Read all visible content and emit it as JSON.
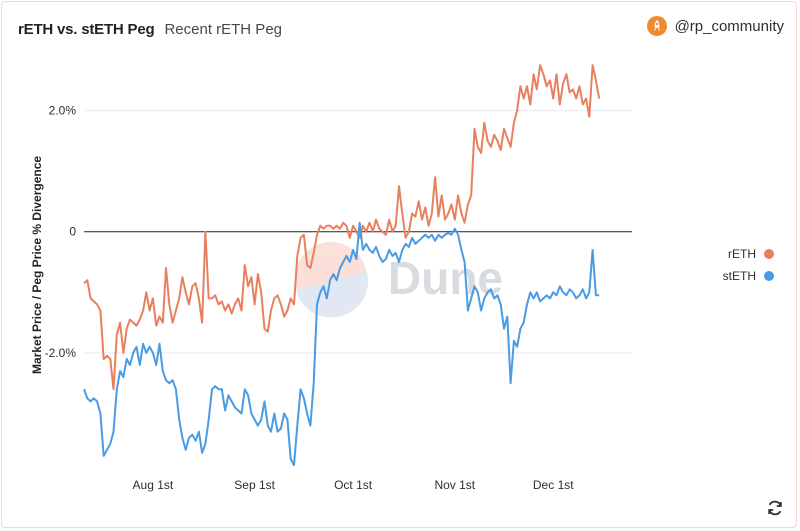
{
  "header": {
    "title": "rETH vs. stETH Peg",
    "subtitle": "Recent rETH Peg",
    "author": "@rp_community",
    "avatar_icon": "rocket-avatar-icon"
  },
  "watermark": "Dune",
  "refresh_icon": "refresh-icon",
  "chart_data": {
    "type": "line",
    "title": "rETH vs. stETH Peg",
    "ylabel": "Market Price / Peg Price % Divergence",
    "xlabel": "",
    "y_ticks": [
      {
        "value": 2.0,
        "label": "2.0%"
      },
      {
        "value": 0,
        "label": "0"
      },
      {
        "value": -2.0,
        "label": "-2.0%"
      }
    ],
    "x_ticks": [
      {
        "value": 21,
        "label": "Aug 1st"
      },
      {
        "value": 52,
        "label": "Sep 1st"
      },
      {
        "value": 82,
        "label": "Oct 1st"
      },
      {
        "value": 113,
        "label": "Nov 1st"
      },
      {
        "value": 143,
        "label": "Dec 1st"
      }
    ],
    "xlim": [
      0,
      167
    ],
    "ylim": [
      -3.9,
      3.0
    ],
    "zero_line": true,
    "legend_position": "right",
    "colors": {
      "reth": "#e8805f",
      "steth": "#4a9be4"
    },
    "series": [
      {
        "name": "rETH",
        "color": "#e8805f",
        "points": [
          [
            0,
            -0.85
          ],
          [
            1,
            -0.8
          ],
          [
            2,
            -1.1
          ],
          [
            3,
            -1.15
          ],
          [
            4,
            -1.2
          ],
          [
            5,
            -1.3
          ],
          [
            6,
            -2.1
          ],
          [
            7,
            -2.05
          ],
          [
            8,
            -2.1
          ],
          [
            9,
            -2.6
          ],
          [
            10,
            -1.7
          ],
          [
            11,
            -1.5
          ],
          [
            12,
            -2.0
          ],
          [
            13,
            -1.6
          ],
          [
            14,
            -1.45
          ],
          [
            15,
            -1.5
          ],
          [
            16,
            -1.55
          ],
          [
            17,
            -1.45
          ],
          [
            18,
            -1.3
          ],
          [
            19,
            -1.0
          ],
          [
            20,
            -1.3
          ],
          [
            21,
            -1.1
          ],
          [
            22,
            -1.55
          ],
          [
            23,
            -1.4
          ],
          [
            24,
            -1.5
          ],
          [
            25,
            -0.6
          ],
          [
            26,
            -1.2
          ],
          [
            27,
            -1.5
          ],
          [
            28,
            -1.3
          ],
          [
            29,
            -1.1
          ],
          [
            30,
            -0.75
          ],
          [
            31,
            -1.0
          ],
          [
            32,
            -1.2
          ],
          [
            33,
            -0.9
          ],
          [
            34,
            -0.85
          ],
          [
            35,
            -1.1
          ],
          [
            36,
            -1.5
          ],
          [
            37,
            0.0
          ],
          [
            38,
            -1.1
          ],
          [
            39,
            -1.1
          ],
          [
            40,
            -1.05
          ],
          [
            41,
            -1.2
          ],
          [
            42,
            -1.15
          ],
          [
            43,
            -1.3
          ],
          [
            44,
            -1.2
          ],
          [
            45,
            -1.35
          ],
          [
            46,
            -1.2
          ],
          [
            47,
            -1.1
          ],
          [
            48,
            -1.3
          ],
          [
            49,
            -0.55
          ],
          [
            50,
            -0.9
          ],
          [
            51,
            -0.75
          ],
          [
            52,
            -1.2
          ],
          [
            53,
            -0.7
          ],
          [
            54,
            -1.0
          ],
          [
            55,
            -1.6
          ],
          [
            56,
            -1.65
          ],
          [
            57,
            -1.3
          ],
          [
            58,
            -1.1
          ],
          [
            59,
            -1.05
          ],
          [
            60,
            -1.2
          ],
          [
            61,
            -1.4
          ],
          [
            62,
            -1.3
          ],
          [
            63,
            -1.1
          ],
          [
            64,
            -1.2
          ],
          [
            65,
            -0.4
          ],
          [
            66,
            -0.1
          ],
          [
            67,
            -0.05
          ],
          [
            68,
            -0.55
          ],
          [
            69,
            -0.6
          ],
          [
            70,
            -0.35
          ],
          [
            71,
            -0.05
          ],
          [
            72,
            0.1
          ],
          [
            73,
            0.05
          ],
          [
            74,
            0.1
          ],
          [
            75,
            0.1
          ],
          [
            76,
            0.05
          ],
          [
            77,
            0.1
          ],
          [
            78,
            0.05
          ],
          [
            79,
            0.15
          ],
          [
            80,
            0.1
          ],
          [
            81,
            -0.1
          ],
          [
            82,
            0.1
          ],
          [
            83,
            0.0
          ],
          [
            84,
            -0.1
          ],
          [
            85,
            0.1
          ],
          [
            86,
            0.0
          ],
          [
            87,
            0.15
          ],
          [
            88,
            0.0
          ],
          [
            89,
            0.2
          ],
          [
            90,
            0.05
          ],
          [
            91,
            0.0
          ],
          [
            92,
            -0.05
          ],
          [
            93,
            0.2
          ],
          [
            94,
            0.0
          ],
          [
            95,
            0.1
          ],
          [
            96,
            0.75
          ],
          [
            97,
            0.3
          ],
          [
            98,
            -0.1
          ],
          [
            99,
            0.0
          ],
          [
            100,
            0.3
          ],
          [
            101,
            0.25
          ],
          [
            102,
            0.5
          ],
          [
            103,
            0.2
          ],
          [
            104,
            0.4
          ],
          [
            105,
            0.1
          ],
          [
            106,
            0.3
          ],
          [
            107,
            0.9
          ],
          [
            108,
            0.25
          ],
          [
            109,
            0.6
          ],
          [
            110,
            0.2
          ],
          [
            111,
            0.3
          ],
          [
            112,
            0.45
          ],
          [
            113,
            0.2
          ],
          [
            114,
            0.6
          ],
          [
            115,
            0.3
          ],
          [
            116,
            0.15
          ],
          [
            117,
            0.45
          ],
          [
            118,
            0.6
          ],
          [
            119,
            1.7
          ],
          [
            120,
            1.4
          ],
          [
            121,
            1.3
          ],
          [
            122,
            1.8
          ],
          [
            123,
            1.5
          ],
          [
            124,
            1.4
          ],
          [
            125,
            1.6
          ],
          [
            126,
            1.5
          ],
          [
            127,
            1.35
          ],
          [
            128,
            1.7
          ],
          [
            129,
            1.55
          ],
          [
            130,
            1.4
          ],
          [
            131,
            1.8
          ],
          [
            132,
            2.0
          ],
          [
            133,
            2.4
          ],
          [
            134,
            2.2
          ],
          [
            135,
            2.4
          ],
          [
            136,
            2.1
          ],
          [
            137,
            2.6
          ],
          [
            138,
            2.35
          ],
          [
            139,
            2.75
          ],
          [
            140,
            2.6
          ],
          [
            141,
            2.4
          ],
          [
            142,
            2.5
          ],
          [
            143,
            2.2
          ],
          [
            144,
            2.6
          ],
          [
            145,
            2.1
          ],
          [
            146,
            2.45
          ],
          [
            147,
            2.6
          ],
          [
            148,
            2.3
          ],
          [
            149,
            2.35
          ],
          [
            150,
            2.2
          ],
          [
            151,
            2.4
          ],
          [
            152,
            2.1
          ],
          [
            153,
            2.2
          ],
          [
            154,
            1.9
          ],
          [
            155,
            2.75
          ],
          [
            156,
            2.5
          ],
          [
            157,
            2.2
          ]
        ]
      },
      {
        "name": "stETH",
        "color": "#4a9be4",
        "points": [
          [
            0,
            -2.6
          ],
          [
            1,
            -2.75
          ],
          [
            2,
            -2.8
          ],
          [
            3,
            -2.75
          ],
          [
            4,
            -2.8
          ],
          [
            5,
            -3.0
          ],
          [
            6,
            -3.7
          ],
          [
            7,
            -3.6
          ],
          [
            8,
            -3.5
          ],
          [
            9,
            -3.3
          ],
          [
            10,
            -2.6
          ],
          [
            11,
            -2.3
          ],
          [
            12,
            -2.4
          ],
          [
            13,
            -2.1
          ],
          [
            14,
            -2.2
          ],
          [
            15,
            -2.0
          ],
          [
            16,
            -1.9
          ],
          [
            17,
            -2.2
          ],
          [
            18,
            -1.85
          ],
          [
            19,
            -2.0
          ],
          [
            20,
            -1.9
          ],
          [
            21,
            -2.0
          ],
          [
            22,
            -2.2
          ],
          [
            23,
            -1.85
          ],
          [
            24,
            -2.3
          ],
          [
            25,
            -2.45
          ],
          [
            26,
            -2.5
          ],
          [
            27,
            -2.45
          ],
          [
            28,
            -2.6
          ],
          [
            29,
            -3.1
          ],
          [
            30,
            -3.4
          ],
          [
            31,
            -3.6
          ],
          [
            32,
            -3.4
          ],
          [
            33,
            -3.35
          ],
          [
            34,
            -3.45
          ],
          [
            35,
            -3.3
          ],
          [
            36,
            -3.65
          ],
          [
            37,
            -3.5
          ],
          [
            38,
            -3.1
          ],
          [
            39,
            -2.6
          ],
          [
            40,
            -2.55
          ],
          [
            41,
            -2.6
          ],
          [
            42,
            -2.6
          ],
          [
            43,
            -2.95
          ],
          [
            44,
            -2.7
          ],
          [
            45,
            -2.8
          ],
          [
            46,
            -2.9
          ],
          [
            47,
            -2.95
          ],
          [
            48,
            -3.0
          ],
          [
            49,
            -2.6
          ],
          [
            50,
            -2.7
          ],
          [
            51,
            -3.0
          ],
          [
            52,
            -3.1
          ],
          [
            53,
            -3.2
          ],
          [
            54,
            -3.1
          ],
          [
            55,
            -2.8
          ],
          [
            56,
            -3.2
          ],
          [
            57,
            -3.3
          ],
          [
            58,
            -3.0
          ],
          [
            59,
            -3.3
          ],
          [
            60,
            -3.25
          ],
          [
            61,
            -3.0
          ],
          [
            62,
            -3.1
          ],
          [
            63,
            -3.75
          ],
          [
            64,
            -3.85
          ],
          [
            65,
            -3.2
          ],
          [
            66,
            -2.6
          ],
          [
            67,
            -2.75
          ],
          [
            68,
            -3.0
          ],
          [
            69,
            -3.2
          ],
          [
            70,
            -2.5
          ],
          [
            71,
            -1.2
          ],
          [
            72,
            -1.0
          ],
          [
            73,
            -0.9
          ],
          [
            74,
            -1.1
          ],
          [
            75,
            -0.8
          ],
          [
            76,
            -0.7
          ],
          [
            77,
            -0.8
          ],
          [
            78,
            -0.6
          ],
          [
            79,
            -0.5
          ],
          [
            80,
            -0.4
          ],
          [
            81,
            -0.5
          ],
          [
            82,
            -0.3
          ],
          [
            83,
            -0.45
          ],
          [
            84,
            0.15
          ],
          [
            85,
            -0.3
          ],
          [
            86,
            -0.2
          ],
          [
            87,
            -0.3
          ],
          [
            88,
            -0.35
          ],
          [
            89,
            -0.25
          ],
          [
            90,
            -0.4
          ],
          [
            91,
            -0.5
          ],
          [
            92,
            -0.45
          ],
          [
            93,
            -0.3
          ],
          [
            94,
            -0.4
          ],
          [
            95,
            -0.35
          ],
          [
            96,
            -0.5
          ],
          [
            97,
            -0.3
          ],
          [
            98,
            -0.2
          ],
          [
            99,
            -0.25
          ],
          [
            100,
            -0.1
          ],
          [
            101,
            -0.2
          ],
          [
            102,
            -0.15
          ],
          [
            103,
            -0.1
          ],
          [
            104,
            -0.05
          ],
          [
            105,
            -0.1
          ],
          [
            106,
            -0.05
          ],
          [
            107,
            -0.15
          ],
          [
            108,
            -0.05
          ],
          [
            109,
            -0.1
          ],
          [
            110,
            -0.05
          ],
          [
            111,
            -0.02
          ],
          [
            112,
            -0.05
          ],
          [
            113,
            0.05
          ],
          [
            114,
            -0.05
          ],
          [
            115,
            -0.3
          ],
          [
            116,
            -0.5
          ],
          [
            117,
            -1.3
          ],
          [
            118,
            -1.1
          ],
          [
            119,
            -0.9
          ],
          [
            120,
            -1.0
          ],
          [
            121,
            -1.3
          ],
          [
            122,
            -1.1
          ],
          [
            123,
            -1.0
          ],
          [
            124,
            -0.95
          ],
          [
            125,
            -1.1
          ],
          [
            126,
            -1.05
          ],
          [
            127,
            -1.2
          ],
          [
            128,
            -1.6
          ],
          [
            129,
            -1.4
          ],
          [
            130,
            -2.5
          ],
          [
            131,
            -1.8
          ],
          [
            132,
            -1.9
          ],
          [
            133,
            -1.6
          ],
          [
            134,
            -1.5
          ],
          [
            135,
            -1.2
          ],
          [
            136,
            -1.0
          ],
          [
            137,
            -1.1
          ],
          [
            138,
            -1.0
          ],
          [
            139,
            -1.15
          ],
          [
            140,
            -1.1
          ],
          [
            141,
            -1.05
          ],
          [
            142,
            -1.1
          ],
          [
            143,
            -1.0
          ],
          [
            144,
            -1.05
          ],
          [
            145,
            -0.9
          ],
          [
            146,
            -1.0
          ],
          [
            147,
            -1.05
          ],
          [
            148,
            -0.95
          ],
          [
            149,
            -1.0
          ],
          [
            150,
            -1.1
          ],
          [
            151,
            -1.05
          ],
          [
            152,
            -0.95
          ],
          [
            153,
            -1.1
          ],
          [
            154,
            -1.0
          ],
          [
            155,
            -0.3
          ],
          [
            156,
            -1.05
          ],
          [
            157,
            -1.05
          ]
        ]
      }
    ]
  }
}
